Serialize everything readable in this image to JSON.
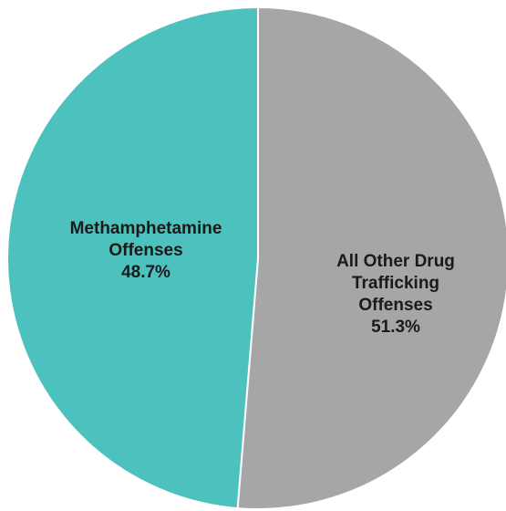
{
  "chart_data": {
    "type": "pie",
    "title": "",
    "slices": [
      {
        "label_lines": [
          "All Other Drug",
          "Trafficking",
          "Offenses"
        ],
        "value": 51.3,
        "value_label": "51.3%",
        "color": "#a6a6a6"
      },
      {
        "label_lines": [
          "Methamphetamine",
          "Offenses"
        ],
        "value": 48.7,
        "value_label": "48.7%",
        "color": "#4dc1bd"
      }
    ],
    "start_angle_deg": 0,
    "direction": "clockwise",
    "legend": "none"
  }
}
